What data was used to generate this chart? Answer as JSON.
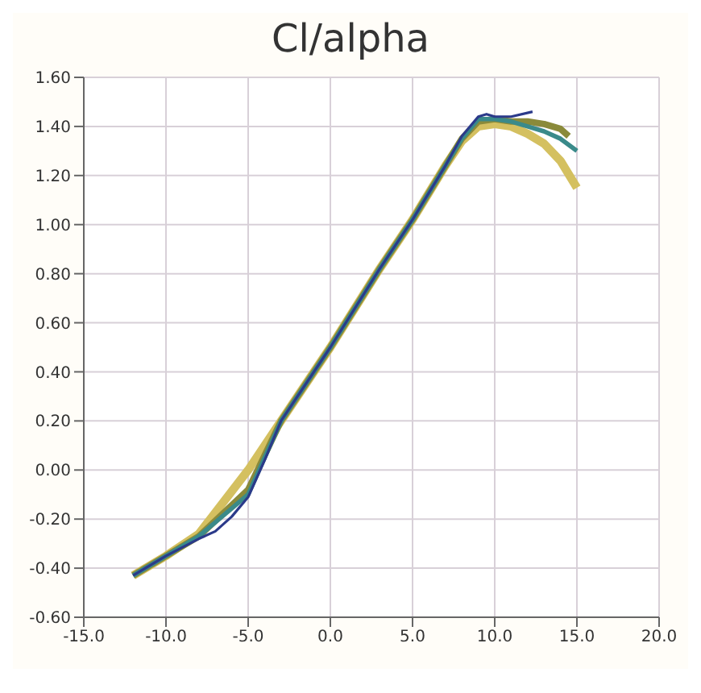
{
  "chart_data": {
    "type": "line",
    "title": "Cl/alpha",
    "xlim": [
      -15,
      20
    ],
    "ylim": [
      -0.6,
      1.6
    ],
    "xticks": [
      {
        "value": -15,
        "label": "-15.0"
      },
      {
        "value": -10,
        "label": "-10.0"
      },
      {
        "value": -5,
        "label": "-5.0"
      },
      {
        "value": 0,
        "label": "0.0"
      },
      {
        "value": 5,
        "label": "5.0"
      },
      {
        "value": 10,
        "label": "10.0"
      },
      {
        "value": 15,
        "label": "15.0"
      },
      {
        "value": 20,
        "label": "20.0"
      }
    ],
    "yticks": [
      {
        "value": -0.6,
        "label": "-0.60"
      },
      {
        "value": -0.4,
        "label": "-0.40"
      },
      {
        "value": -0.2,
        "label": "-0.20"
      },
      {
        "value": 0,
        "label": "0.00"
      },
      {
        "value": 0.2,
        "label": "0.20"
      },
      {
        "value": 0.4,
        "label": "0.40"
      },
      {
        "value": 0.6,
        "label": "0.60"
      },
      {
        "value": 0.8,
        "label": "0.80"
      },
      {
        "value": 1,
        "label": "1.00"
      },
      {
        "value": 1.2,
        "label": "1.20"
      },
      {
        "value": 1.4,
        "label": "1.40"
      },
      {
        "value": 1.6,
        "label": "1.60"
      }
    ],
    "grid": true,
    "legend": false,
    "marker": "none",
    "line_style": "solid",
    "series": [
      {
        "color": "#d4c060",
        "x": [
          -12,
          -10,
          -8,
          -5,
          -3,
          0,
          3,
          5,
          7,
          8,
          9,
          10,
          11,
          12,
          13,
          14,
          15
        ],
        "values": [
          -0.43,
          -0.35,
          -0.26,
          0.0,
          0.2,
          0.5,
          0.82,
          1.02,
          1.24,
          1.34,
          1.4,
          1.41,
          1.4,
          1.37,
          1.33,
          1.26,
          1.15
        ]
      },
      {
        "color": "#8a8a3a",
        "x": [
          -12,
          -10,
          -8,
          -5,
          -3,
          0,
          3,
          5,
          7,
          8,
          9,
          10,
          11,
          12,
          13,
          14,
          14.5
        ],
        "values": [
          -0.43,
          -0.35,
          -0.27,
          -0.08,
          0.2,
          0.5,
          0.82,
          1.02,
          1.24,
          1.35,
          1.42,
          1.43,
          1.42,
          1.42,
          1.41,
          1.39,
          1.36
        ]
      },
      {
        "color": "#3a8a8a",
        "x": [
          -12,
          -10,
          -8,
          -5,
          -3,
          0,
          3,
          5,
          7,
          8,
          9,
          10,
          11,
          12,
          13,
          14,
          15
        ],
        "values": [
          -0.43,
          -0.35,
          -0.27,
          -0.1,
          0.2,
          0.5,
          0.82,
          1.02,
          1.24,
          1.35,
          1.43,
          1.43,
          1.42,
          1.4,
          1.38,
          1.35,
          1.3
        ]
      },
      {
        "color": "#2b3a8a",
        "x": [
          -12,
          -10,
          -8,
          -7,
          -6,
          -5,
          -4,
          -3,
          0,
          3,
          5,
          7,
          8,
          9,
          9.5,
          10,
          11,
          12.3
        ],
        "values": [
          -0.43,
          -0.35,
          -0.28,
          -0.25,
          -0.19,
          -0.11,
          0.04,
          0.2,
          0.5,
          0.82,
          1.02,
          1.24,
          1.36,
          1.44,
          1.45,
          1.44,
          1.44,
          1.46
        ]
      }
    ]
  }
}
